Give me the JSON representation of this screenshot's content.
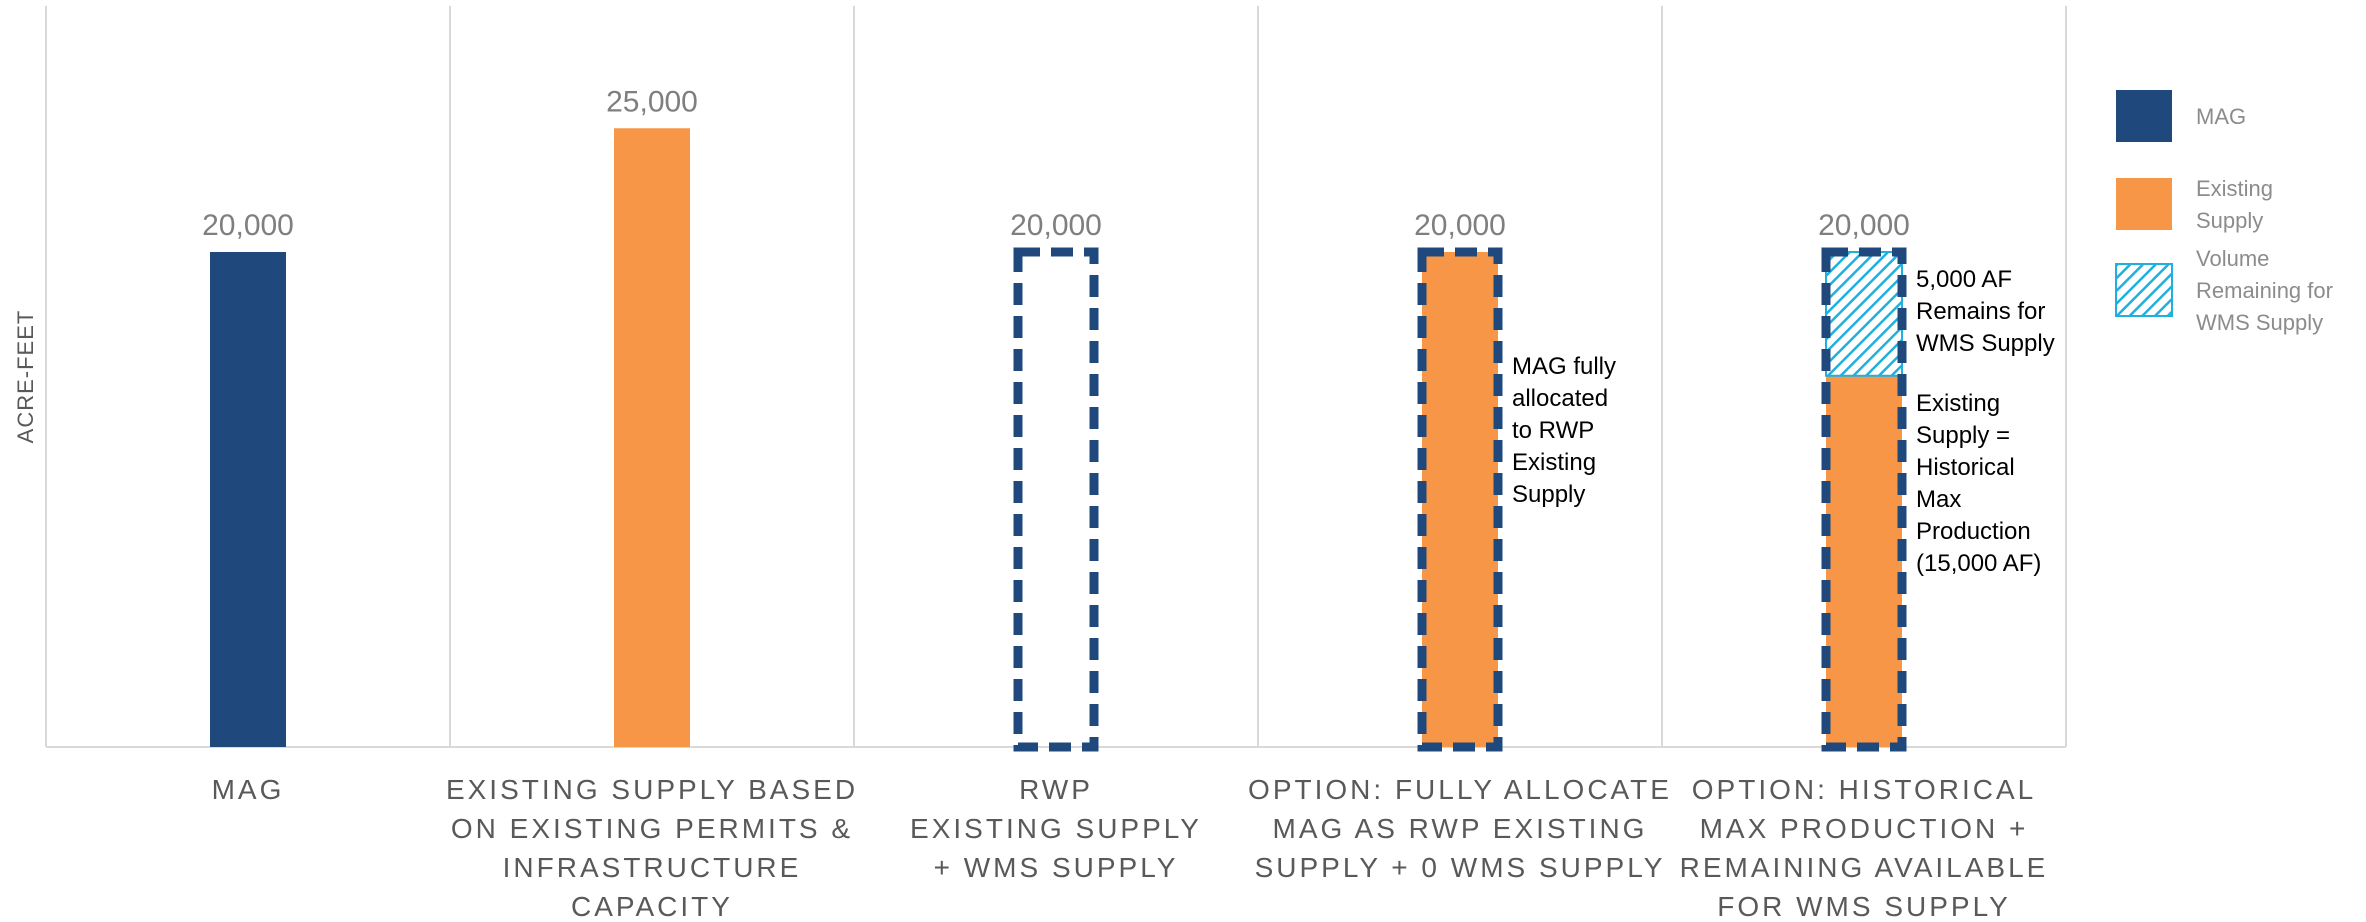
{
  "chart_data": {
    "type": "bar",
    "ylabel": "ACRE-FEET",
    "ylim": [
      0,
      30000
    ],
    "grid": {
      "vertical_separators": true,
      "horizontal": false
    },
    "legend_placement": "right",
    "legend": [
      {
        "key": "mag",
        "label_lines": [
          "MAG"
        ]
      },
      {
        "key": "existing",
        "label_lines": [
          "Existing",
          "Supply"
        ]
      },
      {
        "key": "remaining",
        "label_lines": [
          "Volume",
          "Remaining for",
          "WMS Supply"
        ]
      }
    ],
    "colors": {
      "mag": "#1f497d",
      "existing": "#f79646",
      "remaining": "#1fb0de"
    },
    "categories": [
      {
        "label_lines": [
          "MAG"
        ],
        "value_label": "20,000",
        "segments": [
          {
            "series": "mag",
            "from": 0,
            "to": 20000
          }
        ],
        "dashed_outline": false,
        "annotation_lines": []
      },
      {
        "label_lines": [
          "EXISTING SUPPLY BASED",
          "ON EXISTING PERMITS &",
          "INFRASTRUCTURE",
          "CAPACITY"
        ],
        "value_label": "25,000",
        "segments": [
          {
            "series": "existing",
            "from": 0,
            "to": 25000
          }
        ],
        "dashed_outline": false,
        "annotation_lines": []
      },
      {
        "label_lines": [
          "RWP",
          "EXISTING SUPPLY",
          "+ WMS SUPPLY"
        ],
        "value_label": "20,000",
        "segments": [],
        "dashed_outline": true,
        "outline_value": 20000,
        "annotation_lines": []
      },
      {
        "label_lines": [
          "OPTION: FULLY ALLOCATE",
          "MAG AS RWP EXISTING",
          "SUPPLY + 0 WMS SUPPLY"
        ],
        "value_label": "20,000",
        "segments": [
          {
            "series": "existing",
            "from": 0,
            "to": 20000
          }
        ],
        "dashed_outline": true,
        "outline_value": 20000,
        "annotation_lines": [
          "MAG fully",
          "allocated",
          "to RWP",
          "Existing",
          "Supply"
        ]
      },
      {
        "label_lines": [
          "OPTION: HISTORICAL",
          "MAX PRODUCTION +",
          "REMAINING AVAILABLE",
          "FOR WMS SUPPLY"
        ],
        "value_label": "20,000",
        "segments": [
          {
            "series": "existing",
            "from": 0,
            "to": 15000
          },
          {
            "series": "remaining",
            "from": 15000,
            "to": 20000
          }
        ],
        "dashed_outline": true,
        "outline_value": 20000,
        "annotation_groups": [
          {
            "lines": [
              "5,000 AF",
              "Remains for",
              "WMS Supply"
            ],
            "segment": "remaining"
          },
          {
            "lines": [
              "Existing",
              "Supply =",
              "Historical",
              "Max",
              "Production",
              "(15,000 AF)"
            ],
            "segment": "existing"
          }
        ]
      }
    ]
  }
}
